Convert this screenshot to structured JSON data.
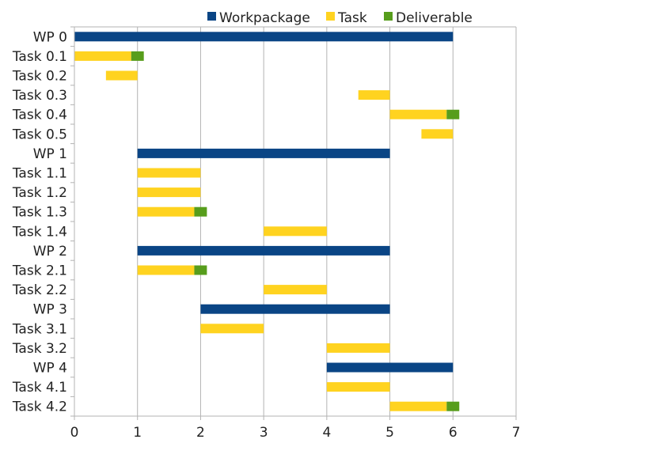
{
  "chart_data": {
    "type": "bar",
    "orientation": "horizontal-gantt",
    "title": "",
    "xlabel": "",
    "ylabel": "",
    "xlim": [
      0,
      7
    ],
    "xticks": [
      "0",
      "1",
      "2",
      "3",
      "4",
      "5",
      "6",
      "7"
    ],
    "grid": true,
    "legend_position": "top",
    "series": [
      {
        "name": "Workpackage",
        "color": "#0a4585"
      },
      {
        "name": "Task",
        "color": "#ffd320"
      },
      {
        "name": "Deliverable",
        "color": "#579d1c"
      }
    ],
    "rows": [
      {
        "label": "WP 0",
        "series": "Workpackage",
        "start": 0,
        "end": 6
      },
      {
        "label": "Task 0.1",
        "series": "Task",
        "start": 0,
        "end": 0.9,
        "deliverable": [
          0.9,
          1.1
        ]
      },
      {
        "label": "Task 0.2",
        "series": "Task",
        "start": 0.5,
        "end": 1
      },
      {
        "label": "Task 0.3",
        "series": "Task",
        "start": 4.5,
        "end": 5
      },
      {
        "label": "Task 0.4",
        "series": "Task",
        "start": 5,
        "end": 5.9,
        "deliverable": [
          5.9,
          6.1
        ]
      },
      {
        "label": "Task 0.5",
        "series": "Task",
        "start": 5.5,
        "end": 6
      },
      {
        "label": "WP 1",
        "series": "Workpackage",
        "start": 1,
        "end": 5
      },
      {
        "label": "Task 1.1",
        "series": "Task",
        "start": 1,
        "end": 2
      },
      {
        "label": "Task 1.2",
        "series": "Task",
        "start": 1,
        "end": 2
      },
      {
        "label": "Task 1.3",
        "series": "Task",
        "start": 1,
        "end": 1.9,
        "deliverable": [
          1.9,
          2.1
        ]
      },
      {
        "label": "Task 1.4",
        "series": "Task",
        "start": 3,
        "end": 4
      },
      {
        "label": "WP 2",
        "series": "Workpackage",
        "start": 1,
        "end": 5
      },
      {
        "label": "Task 2.1",
        "series": "Task",
        "start": 1,
        "end": 1.9,
        "deliverable": [
          1.9,
          2.1
        ]
      },
      {
        "label": "Task 2.2",
        "series": "Task",
        "start": 3,
        "end": 4
      },
      {
        "label": "WP 3",
        "series": "Workpackage",
        "start": 2,
        "end": 5
      },
      {
        "label": "Task 3.1",
        "series": "Task",
        "start": 2,
        "end": 3
      },
      {
        "label": "Task 3.2",
        "series": "Task",
        "start": 4,
        "end": 5
      },
      {
        "label": "WP 4",
        "series": "Workpackage",
        "start": 4,
        "end": 6
      },
      {
        "label": "Task 4.1",
        "series": "Task",
        "start": 4,
        "end": 5
      },
      {
        "label": "Task 4.2",
        "series": "Task",
        "start": 5,
        "end": 5.9,
        "deliverable": [
          5.9,
          6.1
        ]
      }
    ]
  }
}
